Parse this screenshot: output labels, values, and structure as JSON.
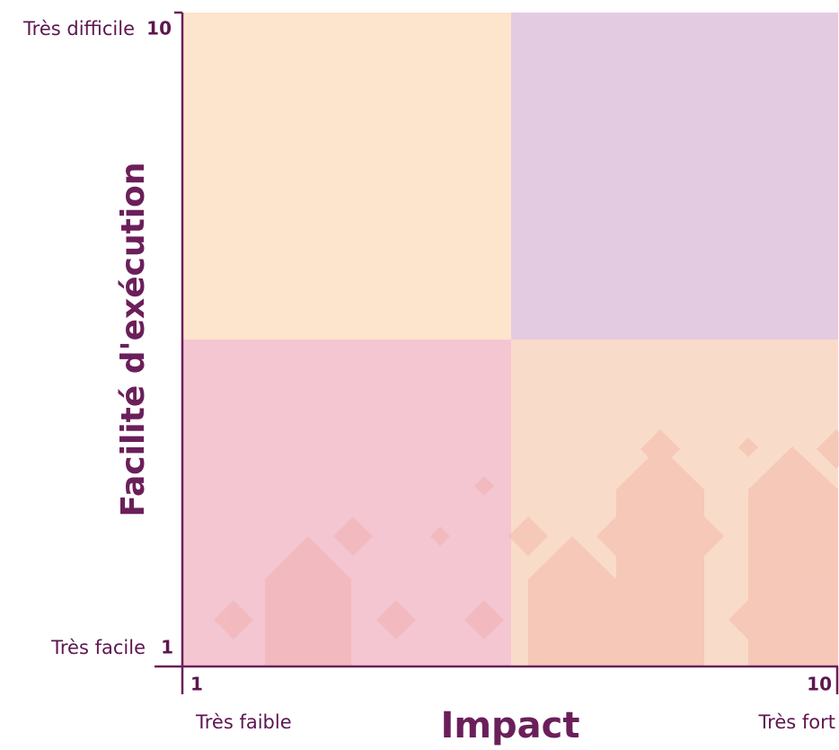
{
  "y_axis": {
    "title": "Facilité d'exécution",
    "top_label": "Très difficile",
    "top_value": 10,
    "bottom_label": "Très facile",
    "bottom_value": 1
  },
  "x_axis": {
    "title": "Impact",
    "left_label": "Très faible",
    "left_value": 1,
    "right_label": "Très fort",
    "right_value": 10
  }
}
